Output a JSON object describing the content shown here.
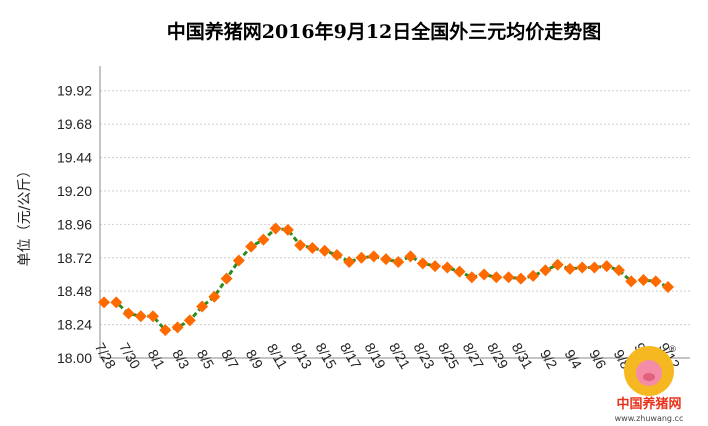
{
  "chart_data": {
    "type": "line",
    "title": "中国养猪网2016年9月12日全国外三元均价走势图",
    "xlabel": "",
    "ylabel": "单位（元/公斤）",
    "ylim": [
      18.0,
      20.04
    ],
    "yticks": [
      "18.00",
      "18.24",
      "18.48",
      "18.72",
      "18.96",
      "19.20",
      "19.44",
      "19.68",
      "19.92"
    ],
    "grid": true,
    "legend": "none",
    "x_tick_labels": [
      "7/28",
      "7/30",
      "8/1",
      "8/3",
      "8/5",
      "8/7",
      "8/9",
      "8/11",
      "8/13",
      "8/15",
      "8/17",
      "8/19",
      "8/21",
      "8/23",
      "8/25",
      "8/27",
      "8/29",
      "8/31",
      "9/2",
      "9/4",
      "9/6",
      "9/8",
      "9/10",
      "9/12"
    ],
    "x": [
      "7/28",
      "7/29",
      "7/30",
      "7/31",
      "8/1",
      "8/2",
      "8/3",
      "8/4",
      "8/5",
      "8/6",
      "8/7",
      "8/8",
      "8/9",
      "8/10",
      "8/11",
      "8/12",
      "8/13",
      "8/14",
      "8/15",
      "8/16",
      "8/17",
      "8/18",
      "8/19",
      "8/20",
      "8/21",
      "8/22",
      "8/23",
      "8/24",
      "8/25",
      "8/26",
      "8/27",
      "8/28",
      "8/29",
      "8/30",
      "8/31",
      "9/1",
      "9/2",
      "9/3",
      "9/4",
      "9/5",
      "9/6",
      "9/7",
      "9/8",
      "9/9",
      "9/10",
      "9/11",
      "9/12"
    ],
    "series": [
      {
        "values": [
          18.4,
          18.4,
          18.32,
          18.3,
          18.3,
          18.2,
          18.22,
          18.27,
          18.37,
          18.44,
          18.57,
          18.7,
          18.8,
          18.85,
          18.93,
          18.92,
          18.81,
          18.79,
          18.77,
          18.74,
          18.69,
          18.72,
          18.73,
          18.71,
          18.69,
          18.73,
          18.68,
          18.66,
          18.65,
          18.62,
          18.58,
          18.6,
          18.58,
          18.58,
          18.57,
          18.59,
          18.63,
          18.67,
          18.64,
          18.65,
          18.65,
          18.66,
          18.63,
          18.55,
          18.56,
          18.55,
          18.51
        ],
        "line_color": "#2e8b1f",
        "marker_color": "#ff6a00"
      }
    ]
  },
  "watermark": {
    "name": "中国养猪网",
    "url": "www.zhuwang.cc"
  }
}
